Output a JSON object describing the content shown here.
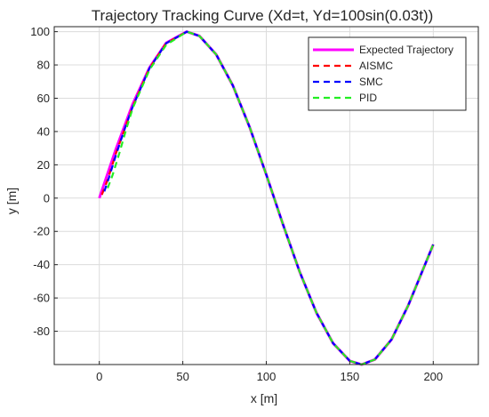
{
  "chart_data": {
    "type": "line",
    "title": "Trajectory Tracking Curve (Xd=t, Yd=100sin(0.03t))",
    "xlabel": "x [m]",
    "ylabel": "y [m]",
    "xlim": [
      -27,
      227
    ],
    "ylim": [
      -100,
      103
    ],
    "xticks": [
      0,
      50,
      100,
      150,
      200
    ],
    "yticks": [
      -80,
      -60,
      -40,
      -20,
      0,
      20,
      40,
      60,
      80,
      100
    ],
    "xtick_labels": [
      "0",
      "50",
      "100",
      "150",
      "200"
    ],
    "ytick_labels": [
      "-80",
      "-60",
      "-40",
      "-20",
      "0",
      "20",
      "40",
      "60",
      "80",
      "100"
    ],
    "grid": true,
    "legend_position": "top-right",
    "series": [
      {
        "name": "Expected Trajectory",
        "color": "#ff00ff",
        "style": "solid",
        "x": [
          0,
          10,
          20,
          30,
          40,
          52.4,
          60,
          70,
          80,
          90,
          100,
          110,
          120,
          130,
          140,
          150,
          157.1,
          165,
          175,
          185,
          200
        ],
        "y": [
          0,
          29.6,
          56.5,
          78.3,
          93.2,
          100,
          97.4,
          86.3,
          67.6,
          42.7,
          14.1,
          -15.8,
          -44.3,
          -68.8,
          -87.2,
          -97.8,
          -100,
          -97.0,
          -85.0,
          -64.5,
          -27.9
        ]
      },
      {
        "name": "AISMC",
        "color": "#ff0000",
        "style": "dashed",
        "x": [
          1.5,
          5,
          10,
          15,
          20,
          30,
          40,
          52.4,
          60,
          70,
          80,
          90,
          100,
          110,
          120,
          130,
          140,
          150,
          157.1,
          165,
          175,
          185,
          200
        ],
        "y": [
          2,
          11,
          27,
          41,
          55,
          78,
          93,
          100,
          97.4,
          86.3,
          67.6,
          42.7,
          14.1,
          -15.8,
          -44.3,
          -68.8,
          -87.2,
          -97.8,
          -100,
          -97.0,
          -85.0,
          -64.5,
          -27.9
        ]
      },
      {
        "name": "SMC",
        "color": "#0000ff",
        "style": "dashed",
        "x": [
          3,
          6,
          10,
          15,
          20,
          30,
          40,
          52.4,
          60,
          70,
          80,
          90,
          100,
          110,
          120,
          130,
          140,
          150,
          157.1,
          165,
          175,
          185,
          200
        ],
        "y": [
          4,
          13,
          26,
          41,
          55,
          78,
          93,
          100,
          97.4,
          86.3,
          67.6,
          42.7,
          14.1,
          -15.8,
          -44.3,
          -68.8,
          -87.2,
          -97.8,
          -100,
          -97.0,
          -85.0,
          -64.5,
          -27.9
        ]
      },
      {
        "name": "PID",
        "color": "#22ee22",
        "style": "dashed",
        "x": [
          5,
          8,
          12,
          16,
          20,
          30,
          40,
          52.4,
          60,
          70,
          80,
          90,
          100,
          110,
          120,
          130,
          140,
          150,
          157.1,
          165,
          175,
          185,
          200
        ],
        "y": [
          6,
          14,
          27,
          41,
          54,
          77,
          92,
          100,
          97.4,
          86.3,
          67.6,
          42.7,
          14.1,
          -15.8,
          -44.3,
          -68.8,
          -87.2,
          -97.8,
          -100,
          -97.0,
          -85.0,
          -64.5,
          -27.9
        ]
      }
    ]
  }
}
